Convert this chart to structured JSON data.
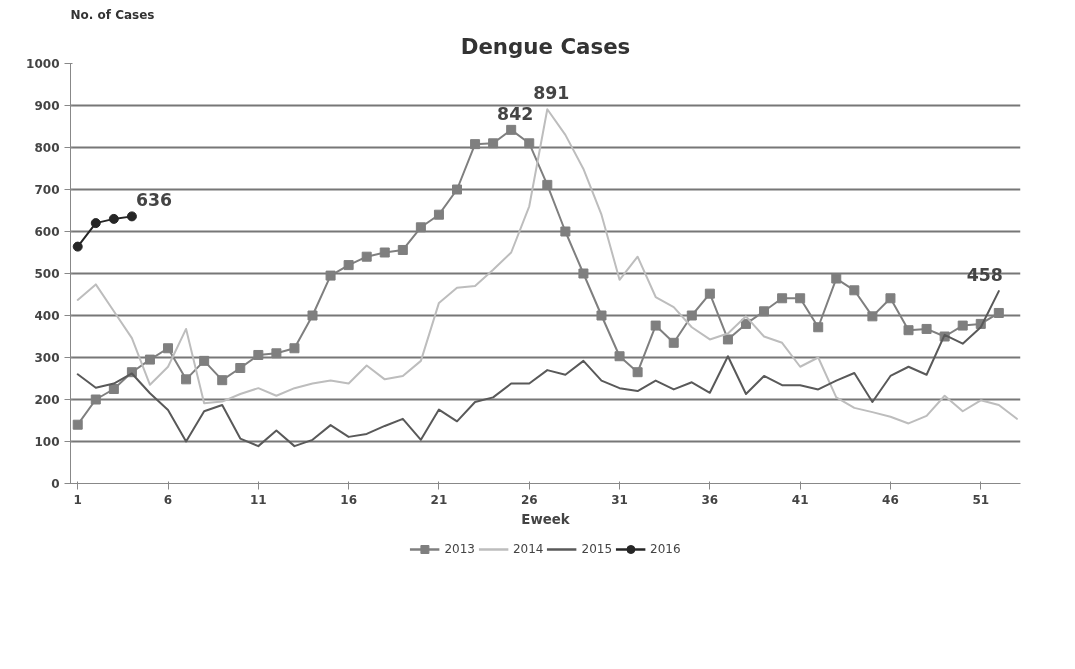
{
  "chart_data": {
    "type": "line",
    "title": "Dengue Cases",
    "xlabel": "Eweek",
    "ylabel": "No. of Cases",
    "x": [
      1,
      2,
      3,
      4,
      5,
      6,
      7,
      8,
      9,
      10,
      11,
      12,
      13,
      14,
      15,
      16,
      17,
      18,
      19,
      20,
      21,
      22,
      23,
      24,
      25,
      26,
      27,
      28,
      29,
      30,
      31,
      32,
      33,
      34,
      35,
      36,
      37,
      38,
      39,
      40,
      41,
      42,
      43,
      44,
      45,
      46,
      47,
      48,
      49,
      50,
      51,
      52
    ],
    "xlim": [
      0.6,
      53.2
    ],
    "xticks": [
      1,
      6,
      11,
      16,
      21,
      26,
      31,
      36,
      41,
      46,
      51
    ],
    "ylim": [
      0,
      1000
    ],
    "yticks": [
      0,
      100,
      200,
      300,
      400,
      500,
      600,
      700,
      800,
      900,
      1000
    ],
    "grid": "y",
    "legend": "bottom",
    "line_style": "solid",
    "series": [
      {
        "name": "2013",
        "color": "#7f7f7f",
        "marker": "square",
        "values": [
          140,
          200,
          225,
          265,
          295,
          322,
          248,
          292,
          246,
          275,
          306,
          310,
          322,
          400,
          495,
          520,
          540,
          550,
          556,
          610,
          640,
          700,
          808,
          810,
          842,
          810,
          711,
          600,
          500,
          400,
          303,
          265,
          376,
          335,
          400,
          452,
          343,
          380,
          410,
          441,
          441,
          372,
          488,
          460,
          398,
          441,
          365,
          368,
          350,
          376,
          380,
          406
        ]
      },
      {
        "name": "2014",
        "color": "#bdbdbd",
        "marker": "none",
        "x": [
          1,
          2,
          3,
          4,
          5,
          6,
          7,
          8,
          9,
          10,
          11,
          12,
          13,
          14,
          15,
          16,
          17,
          18,
          19,
          20,
          21,
          22,
          23,
          24,
          25,
          26,
          27,
          28,
          29,
          30,
          31,
          32,
          33,
          34,
          35,
          36,
          37,
          38,
          39,
          40,
          41,
          42,
          43,
          44,
          45,
          46,
          47,
          48,
          49,
          50,
          51,
          52,
          53
        ],
        "values": [
          437,
          474,
          410,
          346,
          235,
          278,
          368,
          191,
          195,
          213,
          227,
          209,
          227,
          238,
          245,
          238,
          281,
          248,
          256,
          292,
          430,
          466,
          470,
          509,
          550,
          660,
          891,
          830,
          749,
          640,
          485,
          540,
          444,
          420,
          372,
          343,
          357,
          398,
          350,
          335,
          278,
          300,
          205,
          180,
          170,
          159,
          143,
          161,
          209,
          172,
          198,
          187,
          154
        ]
      },
      {
        "name": "2015",
        "color": "#595959",
        "marker": "none",
        "values": [
          260,
          228,
          238,
          262,
          215,
          175,
          100,
          172,
          187,
          107,
          89,
          126,
          89,
          104,
          139,
          111,
          118,
          137,
          154,
          104,
          176,
          148,
          194,
          205,
          238,
          238,
          270,
          259,
          292,
          245,
          227,
          220,
          245,
          224,
          241,
          216,
          303,
          213,
          256,
          234,
          234,
          224,
          245,
          263,
          194,
          256,
          278,
          259,
          354,
          333,
          372,
          458
        ]
      },
      {
        "name": "2016",
        "color": "#262626",
        "marker": "circle",
        "x": [
          1,
          2,
          3,
          4
        ],
        "values": [
          564,
          620,
          630,
          636
        ]
      }
    ],
    "annotations": [
      {
        "text": "842",
        "x": 25,
        "y": 842
      },
      {
        "text": "891",
        "x": 27,
        "y": 891
      },
      {
        "text": "636",
        "x": 4,
        "y": 636
      },
      {
        "text": "458",
        "x": 52,
        "y": 458
      }
    ]
  }
}
